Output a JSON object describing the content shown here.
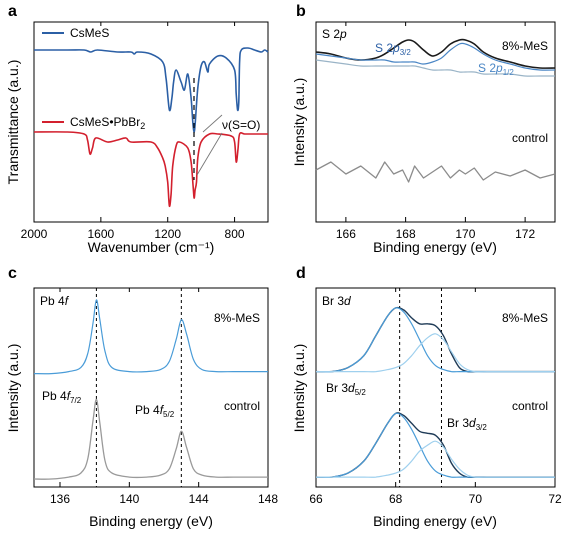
{
  "figure": {
    "panels": [
      {
        "letter": "a",
        "ylabel": "Transmittance (a.u.)",
        "xlabel": "Wavenumber (cm⁻¹)",
        "xlim": [
          2000,
          600
        ],
        "ylim": [
          0,
          100
        ],
        "xticks": [
          "2000",
          "1600",
          "1200",
          "800"
        ],
        "xtick_values": [
          2000,
          1600,
          1200,
          800
        ],
        "annotation": "ν(S=O)",
        "dashed_x": 1040
      },
      {
        "letter": "b",
        "ylabel": "Intensity (a.u.)",
        "xlabel": "Binding energy (eV)",
        "xlim": [
          165,
          173
        ],
        "ylim": [
          0,
          100
        ],
        "xticks": [
          "166",
          "168",
          "170",
          "172"
        ],
        "xtick_values": [
          166,
          168,
          170,
          172
        ],
        "corner_label": "S 2p",
        "top_right_label": "8%-MeS",
        "bottom_right_label": "control",
        "peak_labels": [
          "S 2p3/2",
          "S 2p1/2"
        ]
      },
      {
        "letter": "c",
        "ylabel": "Intensity (a.u.)",
        "xlabel": "Binding energy (eV)",
        "xlim": [
          134.5,
          148
        ],
        "ylim": [
          0,
          100
        ],
        "xticks": [
          "136",
          "140",
          "144",
          "148"
        ],
        "xtick_values": [
          136,
          140,
          144,
          148
        ],
        "corner_label": "Pb 4f",
        "top_right_label": "8%-MeS",
        "bottom_right_label": "control",
        "peak_labels": [
          "Pb 4f7/2",
          "Pb 4f5/2"
        ],
        "dashed_x": [
          138.1,
          143
        ]
      },
      {
        "letter": "d",
        "ylabel": "Intensity (a.u.)",
        "xlabel": "Binding energy (eV)",
        "xlim": [
          66,
          72
        ],
        "ylim": [
          0,
          100
        ],
        "xticks": [
          "66",
          "68",
          "70",
          "72"
        ],
        "xtick_values": [
          66,
          68,
          70,
          72
        ],
        "corner_label": "Br 3d",
        "top_right_label": "8%-MeS",
        "bottom_right_label": "control",
        "peak_labels": [
          "Br 3d5/2",
          "Br 3d3/2"
        ],
        "dashed_x": [
          68.1,
          69.15
        ]
      }
    ]
  },
  "chart_data": [
    {
      "type": "line",
      "title": "a",
      "xlabel": "Wavenumber (cm⁻¹)",
      "ylabel": "Transmittance (a.u.)",
      "xlim": [
        2000,
        600
      ],
      "series": [
        {
          "name": "CsMeS",
          "color": "#2b5fa5",
          "x": [
            2000,
            1800,
            1700,
            1660,
            1620,
            1500,
            1420,
            1400,
            1380,
            1300,
            1230,
            1210,
            1190,
            1175,
            1165,
            1150,
            1120,
            1100,
            1080,
            1060,
            1050,
            1042,
            1035,
            1020,
            1000,
            980,
            960,
            950,
            900,
            850,
            800,
            790,
            782,
            775,
            770,
            760,
            720,
            680,
            640,
            620,
            600
          ],
          "y": [
            86,
            86,
            86,
            85,
            86,
            85,
            85,
            84,
            85,
            84,
            80,
            72,
            56,
            62,
            70,
            76,
            70,
            66,
            74,
            62,
            50,
            45,
            50,
            67,
            78,
            80,
            75,
            79,
            83,
            82,
            76,
            64,
            56,
            60,
            80,
            86,
            87,
            86,
            85,
            86,
            85
          ]
        },
        {
          "name": "CsMeS•PbBr2",
          "color": "#d3202e",
          "x": [
            2000,
            1800,
            1700,
            1680,
            1665,
            1650,
            1630,
            1560,
            1500,
            1450,
            1420,
            1300,
            1260,
            1230,
            1215,
            1200,
            1190,
            1180,
            1170,
            1150,
            1130,
            1080,
            1060,
            1048,
            1042,
            1036,
            1028,
            1020,
            1000,
            950,
            900,
            820,
            800,
            790,
            780,
            770,
            740,
            700,
            650,
            600
          ],
          "y": [
            45,
            45,
            44,
            41,
            34,
            37,
            42,
            40,
            41,
            42,
            40,
            40,
            37,
            32,
            28,
            20,
            8,
            14,
            28,
            38,
            40,
            37,
            30,
            18,
            12,
            16,
            20,
            32,
            40,
            44,
            44,
            43,
            40,
            30,
            36,
            44,
            44,
            44,
            44,
            44
          ]
        }
      ]
    },
    {
      "type": "line",
      "title": "b",
      "xlabel": "Binding energy (eV)",
      "ylabel": "Intensity (a.u.)",
      "xlim": [
        165,
        173
      ],
      "x": [
        165,
        165.5,
        166,
        166.5,
        167,
        167.3,
        167.6,
        167.9,
        168.1,
        168.3,
        168.6,
        168.9,
        169.2,
        169.5,
        169.8,
        170,
        170.3,
        170.6,
        171,
        171.5,
        172,
        172.5,
        173
      ],
      "series": [
        {
          "name": "8%-MeS data",
          "color": "#1a1a1a",
          "y": [
            85,
            84,
            82,
            81,
            82,
            84,
            87,
            90,
            91,
            90,
            86,
            83,
            85,
            89,
            91,
            91,
            89,
            85,
            82,
            80,
            78,
            77,
            77
          ]
        },
        {
          "name": "S 2p3/2 fit",
          "color": "#9ab4c7",
          "y": [
            81,
            80,
            79,
            78,
            78,
            78,
            78,
            78,
            78,
            78,
            77,
            76,
            76,
            76,
            75,
            75,
            75,
            74,
            74,
            74,
            73,
            73,
            73
          ]
        },
        {
          "name": "S 2p1/2 fit",
          "color": "#4a86c5",
          "y": [
            84,
            83,
            82,
            81,
            81,
            81,
            80,
            80,
            80,
            80,
            79,
            80,
            82,
            86,
            89,
            89,
            87,
            84,
            81,
            79,
            77,
            76,
            76
          ]
        },
        {
          "name": "control",
          "color": "#8c8c8c",
          "y": [
            26,
            30,
            24,
            28,
            22,
            30,
            24,
            26,
            20,
            28,
            22,
            25,
            28,
            22,
            26,
            24,
            27,
            21,
            25,
            23,
            26,
            22,
            24
          ]
        }
      ]
    },
    {
      "type": "line",
      "title": "c",
      "xlabel": "Binding energy (eV)",
      "ylabel": "Intensity (a.u.)",
      "xlim": [
        134.5,
        148
      ],
      "x": [
        134.5,
        135.5,
        136.5,
        137.2,
        137.6,
        137.9,
        138.1,
        138.3,
        138.6,
        139,
        140,
        141,
        141.8,
        142.3,
        142.7,
        143,
        143.3,
        143.7,
        144.2,
        145,
        146,
        147,
        148
      ],
      "series": [
        {
          "name": "8%-MeS",
          "color": "#4a9cd8",
          "y": [
            57,
            57,
            58,
            60,
            67,
            82,
            94,
            84,
            68,
            60,
            58,
            58,
            59,
            63,
            74,
            84,
            77,
            64,
            59,
            58,
            58,
            58,
            58
          ]
        },
        {
          "name": "control",
          "color": "#9a9a9a",
          "y": [
            4,
            4,
            5,
            7,
            14,
            33,
            44,
            32,
            13,
            7,
            5,
            5,
            6,
            9,
            19,
            28,
            20,
            9,
            6,
            5,
            5,
            5,
            5
          ]
        }
      ]
    },
    {
      "type": "line",
      "title": "d",
      "xlabel": "Binding energy (eV)",
      "ylabel": "Intensity (a.u.)",
      "xlim": [
        66,
        72
      ],
      "x": [
        66,
        66.4,
        66.8,
        67.2,
        67.5,
        67.8,
        68,
        68.2,
        68.4,
        68.6,
        68.8,
        69,
        69.2,
        69.4,
        69.6,
        69.8,
        70,
        70.3,
        70.6,
        71,
        71.5,
        72
      ],
      "series": [
        {
          "name": "8%-MeS total",
          "color": "#1f3b57",
          "y": [
            58,
            58,
            60,
            66,
            76,
            86,
            90,
            89,
            85,
            82,
            82,
            81,
            76,
            67,
            60,
            58,
            58,
            58,
            58,
            58,
            58,
            58
          ]
        },
        {
          "name": "8%-MeS Br 3d5/2",
          "color": "#4a9cd8",
          "y": [
            58,
            58,
            60,
            66,
            76,
            86,
            90,
            88,
            82,
            74,
            66,
            61,
            59,
            58,
            58,
            58,
            58,
            58,
            58,
            58,
            58,
            58
          ]
        },
        {
          "name": "8%-MeS Br 3d3/2",
          "color": "#9fd0ee",
          "y": [
            58,
            58,
            58,
            58,
            58,
            59,
            60,
            62,
            66,
            71,
            75,
            77,
            74,
            68,
            62,
            59,
            58,
            58,
            58,
            58,
            58,
            58
          ]
        },
        {
          "name": "control total",
          "color": "#1f3b57",
          "y": [
            5,
            5,
            7,
            13,
            22,
            32,
            37,
            36,
            32,
            28,
            27,
            26,
            21,
            12,
            7,
            5,
            5,
            5,
            5,
            5,
            5,
            5
          ]
        },
        {
          "name": "control Br 3d5/2",
          "color": "#4a9cd8",
          "y": [
            5,
            5,
            7,
            13,
            22,
            32,
            37,
            35,
            29,
            21,
            13,
            8,
            6,
            5,
            5,
            5,
            5,
            5,
            5,
            5,
            5,
            5
          ]
        },
        {
          "name": "control Br 3d3/2",
          "color": "#9fd0ee",
          "y": [
            5,
            5,
            5,
            5,
            5,
            6,
            7,
            9,
            13,
            18,
            21,
            23,
            20,
            14,
            9,
            6,
            5,
            5,
            5,
            5,
            5,
            5
          ]
        }
      ]
    }
  ]
}
